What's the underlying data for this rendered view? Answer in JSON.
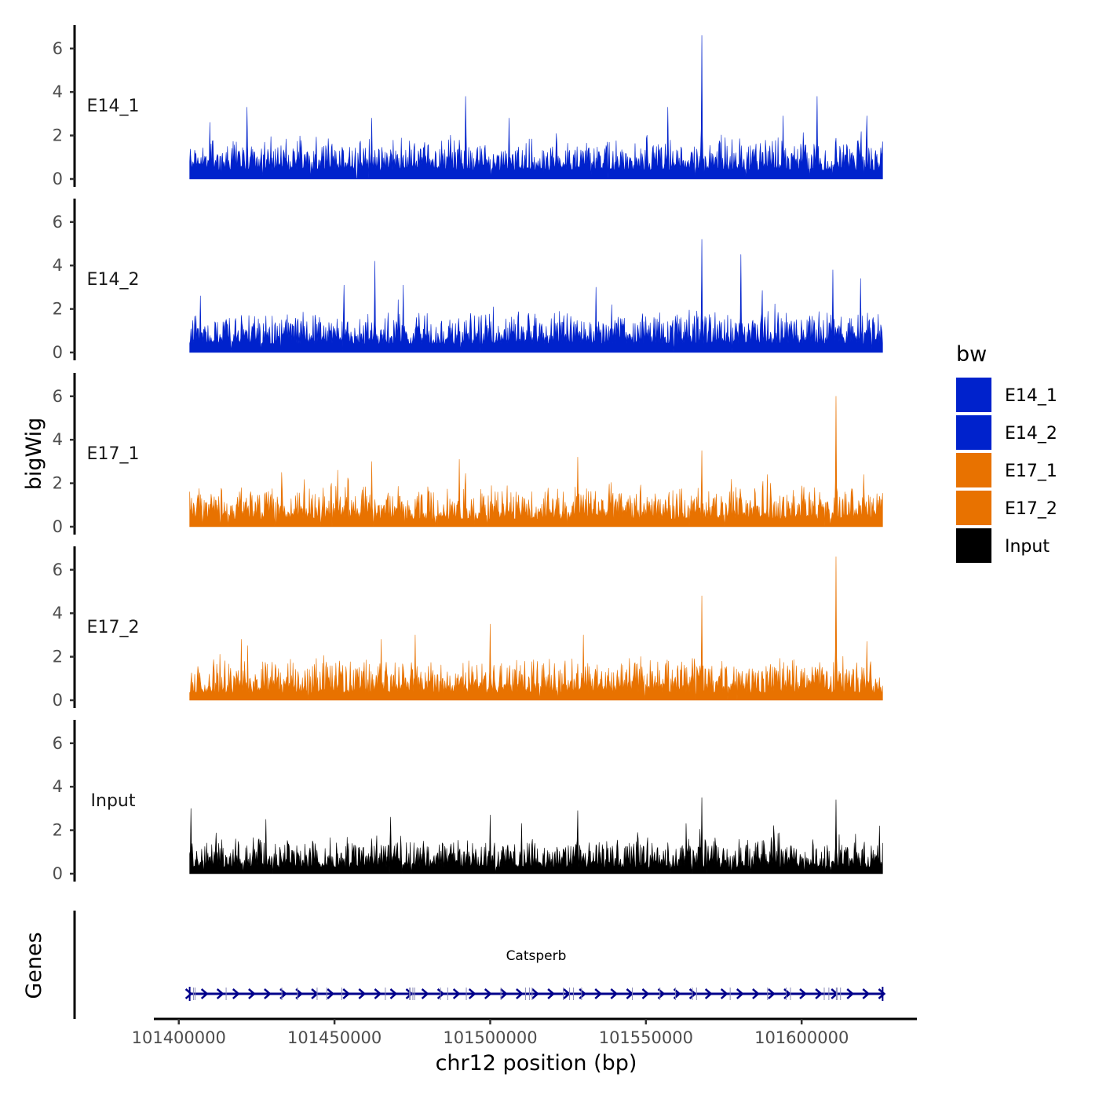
{
  "chart_data": {
    "type": "area",
    "chromosome": "chr12",
    "xlabel": "chr12 position (bp)",
    "ylabel": "bigWig",
    "gene_track_label": "Genes",
    "xlim": [
      101392000,
      101637000
    ],
    "data_range": [
      101403500,
      101626000
    ],
    "xticks": [
      101400000,
      101450000,
      101500000,
      101550000,
      101600000
    ],
    "xtick_labels": [
      "101400000",
      "101450000",
      "101500000",
      "101550000",
      "101600000"
    ],
    "ylim": [
      0,
      7
    ],
    "yticks": [
      0,
      2,
      4,
      6
    ],
    "ytick_labels": [
      "0",
      "2",
      "4",
      "6"
    ],
    "legend": {
      "title": "bw",
      "entries": [
        {
          "label": "E14_1",
          "color": "#0022CC"
        },
        {
          "label": "E14_2",
          "color": "#0022CC"
        },
        {
          "label": "E17_1",
          "color": "#E87200"
        },
        {
          "label": "E17_2",
          "color": "#E87200"
        },
        {
          "label": "Input",
          "color": "#000000"
        }
      ]
    },
    "series": [
      {
        "name": "E14_1",
        "color": "#0022CC",
        "seed": 11,
        "typical_max": 1.6,
        "baseline": 0.4,
        "peaks": [
          [
            101410000,
            2.6
          ],
          [
            101422000,
            3.3
          ],
          [
            101462000,
            2.8
          ],
          [
            101492000,
            3.8
          ],
          [
            101506000,
            2.8
          ],
          [
            101557000,
            3.3
          ],
          [
            101568000,
            6.6
          ],
          [
            101594000,
            2.9
          ],
          [
            101605000,
            3.8
          ],
          [
            101621000,
            2.9
          ]
        ]
      },
      {
        "name": "E14_2",
        "color": "#0022CC",
        "seed": 23,
        "typical_max": 1.6,
        "baseline": 0.4,
        "peaks": [
          [
            101407000,
            2.6
          ],
          [
            101453000,
            3.1
          ],
          [
            101463000,
            4.2
          ],
          [
            101472000,
            3.1
          ],
          [
            101534000,
            3.0
          ],
          [
            101568000,
            5.2
          ],
          [
            101580500,
            4.5
          ],
          [
            101610000,
            3.8
          ],
          [
            101619000,
            3.4
          ]
        ]
      },
      {
        "name": "E17_1",
        "color": "#E87200",
        "seed": 37,
        "typical_max": 1.7,
        "baseline": 0.35,
        "peaks": [
          [
            101433000,
            2.5
          ],
          [
            101451000,
            2.6
          ],
          [
            101462000,
            3.0
          ],
          [
            101490000,
            3.1
          ],
          [
            101528000,
            3.2
          ],
          [
            101568000,
            3.5
          ],
          [
            101589000,
            2.4
          ],
          [
            101611000,
            6.0
          ],
          [
            101620000,
            2.4
          ]
        ]
      },
      {
        "name": "E17_2",
        "color": "#E87200",
        "seed": 53,
        "typical_max": 1.7,
        "baseline": 0.35,
        "peaks": [
          [
            101420000,
            2.8
          ],
          [
            101465000,
            2.8
          ],
          [
            101476000,
            3.0
          ],
          [
            101500000,
            3.5
          ],
          [
            101530000,
            3.0
          ],
          [
            101568000,
            4.8
          ],
          [
            101611000,
            6.6
          ],
          [
            101621000,
            2.7
          ]
        ]
      },
      {
        "name": "Input",
        "color": "#000000",
        "seed": 71,
        "typical_max": 1.5,
        "baseline": 0.3,
        "peaks": [
          [
            101404000,
            3.0
          ],
          [
            101428000,
            2.5
          ],
          [
            101468000,
            2.6
          ],
          [
            101500000,
            2.7
          ],
          [
            101528000,
            2.9
          ],
          [
            101568000,
            3.5
          ],
          [
            101611000,
            3.4
          ],
          [
            101625000,
            2.2
          ]
        ]
      }
    ],
    "genes": [
      {
        "name": "Catsperb",
        "start": 101403500,
        "end": 101626000,
        "strand": "+",
        "color": "#00008B"
      }
    ]
  }
}
